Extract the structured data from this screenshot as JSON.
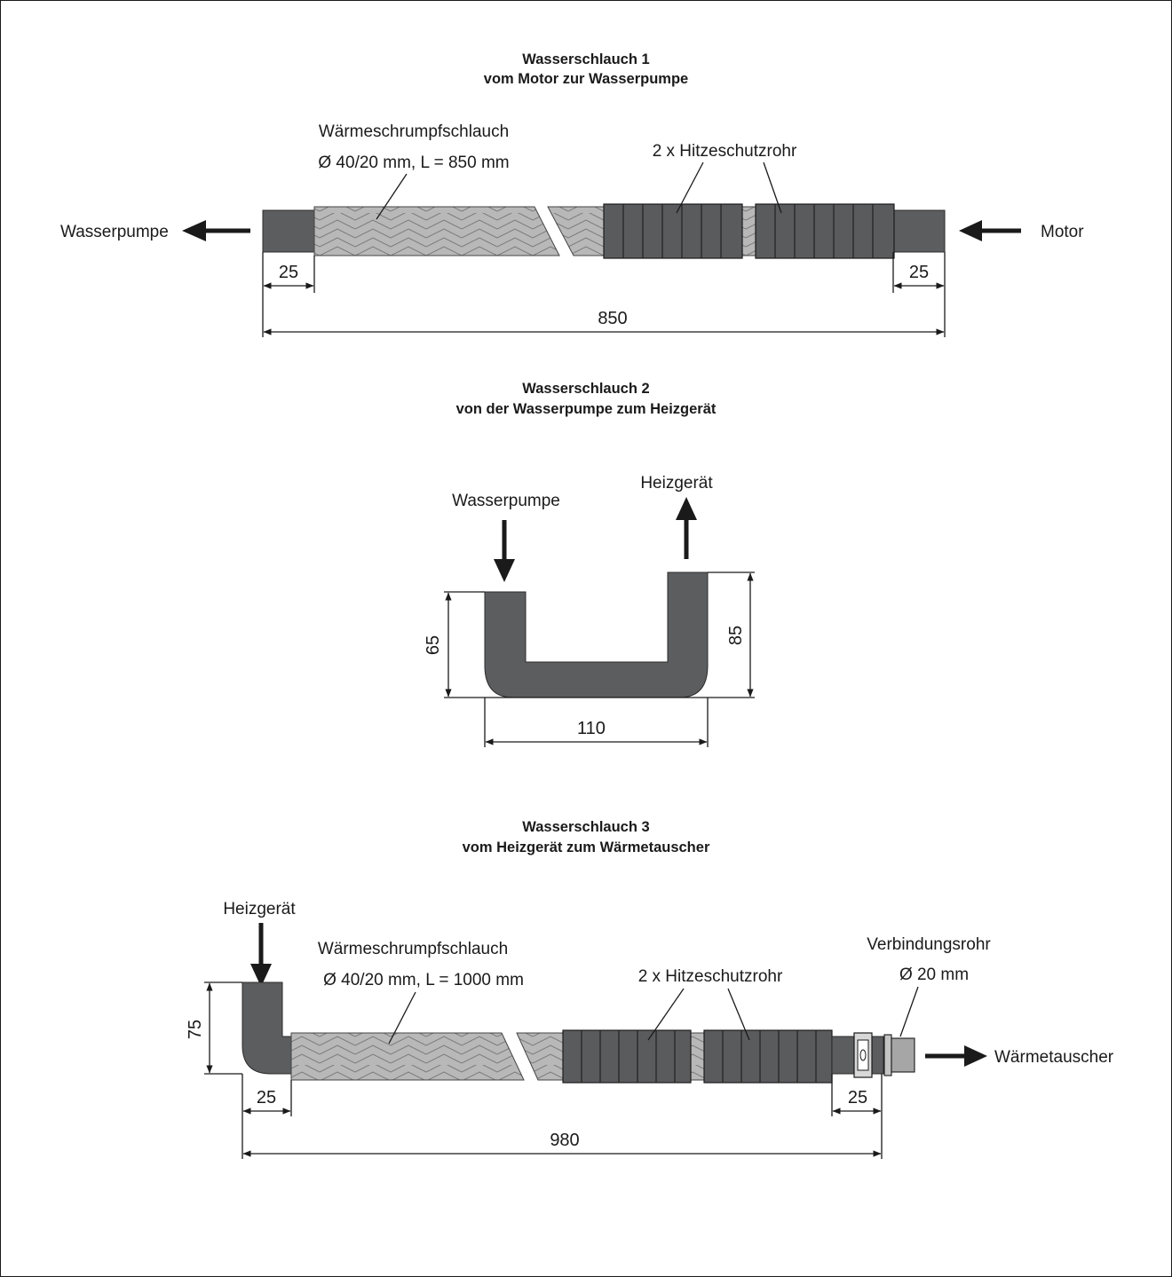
{
  "hose1": {
    "title": "Wasserschlauch 1",
    "subtitle": "vom Motor zur Wasserpumpe",
    "sleeve_label_line1": "Wärmeschrumpfschlauch",
    "sleeve_label_line2": "Ø 40/20 mm, L = 850 mm",
    "shield_label": "2 x Hitzeschutzrohr",
    "left_target": "Wasserpumpe",
    "right_target": "Motor",
    "dim_left": "25",
    "dim_right": "25",
    "dim_total": "850"
  },
  "hose2": {
    "title": "Wasserschlauch 2",
    "subtitle": "von der Wasserpumpe zum Heizgerät",
    "in_label": "Wasserpumpe",
    "out_label": "Heizgerät",
    "dim_left": "65",
    "dim_right": "85",
    "dim_bottom": "110"
  },
  "hose3": {
    "title": "Wasserschlauch 3",
    "subtitle": "vom Heizgerät zum Wärmetauscher",
    "in_label": "Heizgerät",
    "sleeve_label_line1": "Wärmeschrumpfschlauch",
    "sleeve_label_line2": "Ø 40/20 mm, L = 1000 mm",
    "shield_label": "2 x Hitzeschutzrohr",
    "pipe_label_line1": "Verbindungsrohr",
    "pipe_label_line2": "Ø 20 mm",
    "out_label": "Wärmetauscher",
    "dim_height": "75",
    "dim_left": "25",
    "dim_right": "25",
    "dim_total": "980"
  },
  "colors": {
    "hose": "#5c5d5f",
    "sleeve": "#b6b6b6",
    "shield": "#5a5b5d",
    "line": "#1a1a1a"
  }
}
